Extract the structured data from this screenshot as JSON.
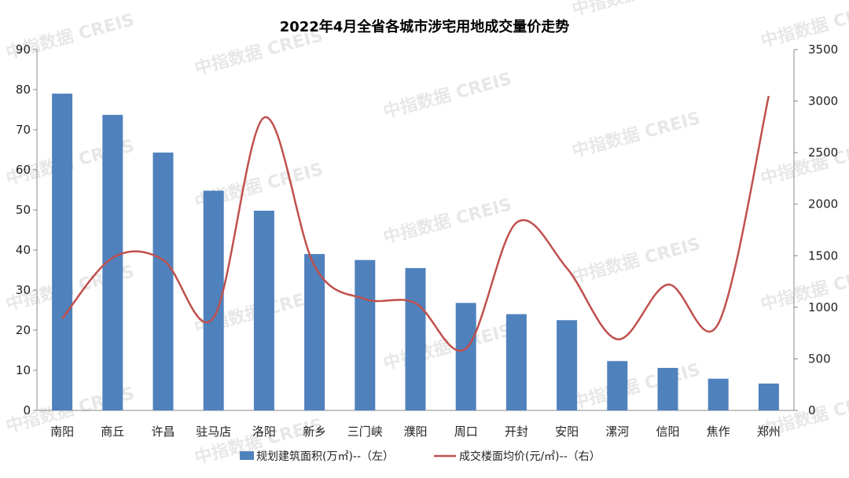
{
  "chart_data": {
    "type": "bar+line",
    "title": "2022年4月全省各城市涉宅用地成交量价走势",
    "categories": [
      "南阳",
      "商丘",
      "许昌",
      "驻马店",
      "洛阳",
      "新乡",
      "三门峡",
      "濮阳",
      "周口",
      "开封",
      "安阳",
      "漯河",
      "信阳",
      "焦作",
      "郑州"
    ],
    "series": [
      {
        "name": "规划建筑面积(万㎡)--（左）",
        "type": "bar",
        "axis": "left",
        "color": "#4f81bd",
        "values": [
          79,
          73.7,
          64.3,
          54.8,
          49.8,
          39,
          37.5,
          35.5,
          26.8,
          24,
          22.5,
          12.3,
          10.6,
          7.9,
          6.7
        ]
      },
      {
        "name": "成交楼面均价(元/㎡)--（右）",
        "type": "line",
        "axis": "right",
        "color": "#c0504d",
        "smooth": true,
        "values": [
          890,
          1480,
          1460,
          900,
          2840,
          1400,
          1080,
          1040,
          600,
          1820,
          1380,
          690,
          1220,
          840,
          3050
        ]
      }
    ],
    "y_left": {
      "min": 0,
      "max": 90,
      "ticks": [
        0,
        10,
        20,
        30,
        40,
        50,
        60,
        70,
        80,
        90
      ]
    },
    "y_right": {
      "min": 0,
      "max": 3500,
      "ticks": [
        0,
        500,
        1000,
        1500,
        2000,
        2500,
        3000,
        3500
      ]
    },
    "grid": false,
    "legend": "bottom-center"
  },
  "watermark": "中指数据 CREIS"
}
